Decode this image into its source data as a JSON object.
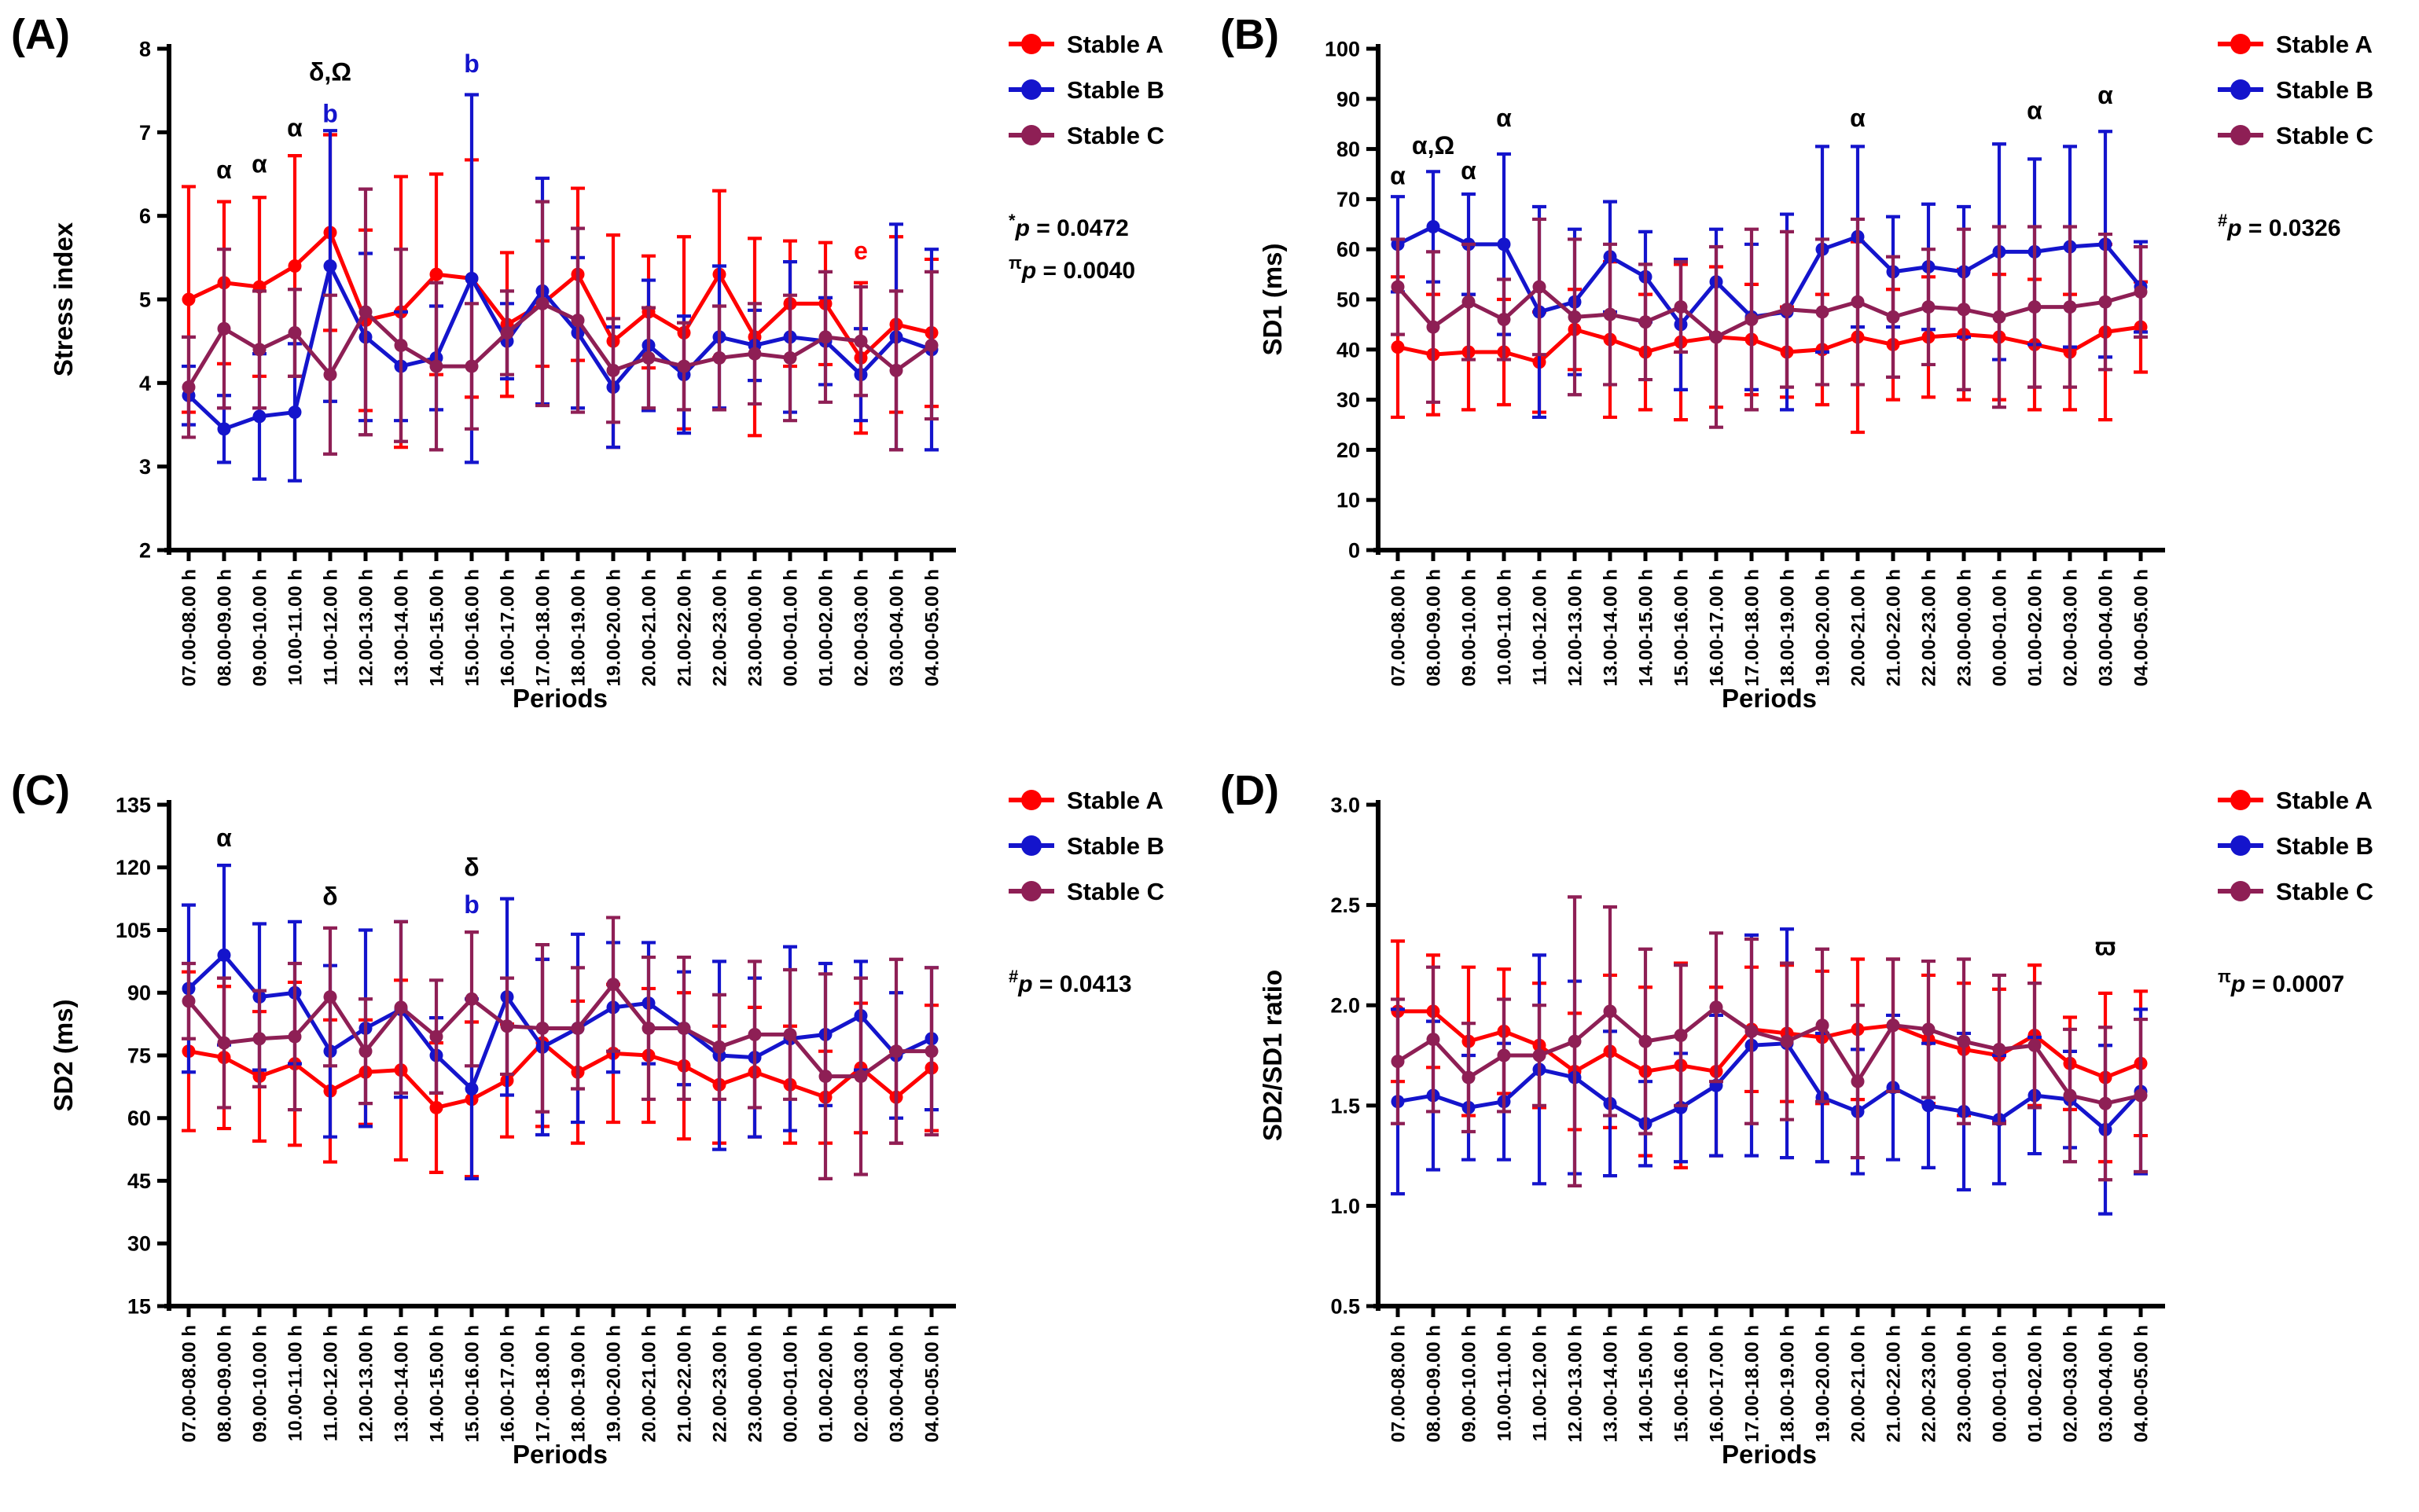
{
  "figure": {
    "background": "#ffffff",
    "xlabel": "Periods",
    "legend_labels": [
      "Stable A",
      "Stable B",
      "Stable C"
    ],
    "colors": {
      "stable_a": "#FF0000",
      "stable_b": "#1414CC",
      "stable_c": "#8E1F55",
      "axis": "#000000"
    },
    "periods": [
      "07.00-08.00 h",
      "08.00-09.00 h",
      "09.00-10.00 h",
      "10.00-11.00 h",
      "11.00-12.00 h",
      "12.00-13.00 h",
      "13.00-14.00 h",
      "14.00-15.00 h",
      "15.00-16.00 h",
      "16.00-17.00 h",
      "17.00-18.00 h",
      "18.00-19.00 h",
      "19.00-20.00 h",
      "20.00-21.00 h",
      "21.00-22.00 h",
      "22.00-23.00 h",
      "23.00-00.00 h",
      "00.00-01.00 h",
      "01.00-02.00 h",
      "02.00-03.00 h",
      "03.00-04.00 h",
      "04.00-05.00 h"
    ]
  },
  "chart_data": [
    {
      "type": "line",
      "letter": "(A)",
      "ylabel": "Stress index",
      "xlabel": "Periods",
      "ylim": [
        2,
        8
      ],
      "ytick_step": 1,
      "ytick_decimals": 0,
      "grid": false,
      "legend_position": "right",
      "series": [
        {
          "name": "Stable A",
          "color": "#FF0000",
          "values": [
            5.0,
            5.2,
            5.15,
            5.4,
            5.8,
            4.75,
            4.85,
            5.3,
            5.25,
            4.7,
            4.95,
            5.3,
            4.5,
            4.85,
            4.6,
            5.3,
            4.55,
            4.95,
            4.95,
            4.3,
            4.7,
            4.6
          ],
          "sd": [
            1.35,
            0.97,
            1.07,
            1.32,
            1.17,
            1.08,
            1.62,
            1.2,
            1.42,
            0.86,
            0.75,
            1.03,
            1.27,
            0.67,
            1.15,
            1.0,
            1.18,
            0.75,
            0.73,
            0.9,
            1.05,
            0.88
          ]
        },
        {
          "name": "Stable B",
          "color": "#1414CC",
          "values": [
            3.85,
            3.45,
            3.6,
            3.65,
            5.4,
            4.55,
            4.2,
            4.3,
            5.25,
            4.5,
            5.1,
            4.6,
            3.95,
            4.45,
            4.1,
            4.55,
            4.45,
            4.55,
            4.5,
            4.1,
            4.55,
            4.4
          ],
          "sd": [
            0.35,
            0.4,
            0.75,
            0.82,
            1.62,
            1.0,
            0.65,
            0.62,
            2.2,
            0.45,
            1.35,
            0.9,
            0.72,
            0.78,
            0.7,
            0.85,
            0.42,
            0.9,
            0.52,
            0.55,
            1.35,
            1.2
          ]
        },
        {
          "name": "Stable C",
          "color": "#8E1F55",
          "values": [
            3.95,
            4.65,
            4.4,
            4.6,
            4.1,
            4.85,
            4.45,
            4.2,
            4.2,
            4.6,
            4.95,
            4.75,
            4.15,
            4.3,
            4.2,
            4.3,
            4.35,
            4.3,
            4.55,
            4.5,
            4.15,
            4.45
          ],
          "sd": [
            0.6,
            0.95,
            0.7,
            0.52,
            0.95,
            1.47,
            1.15,
            1.0,
            0.75,
            0.5,
            1.22,
            1.1,
            0.62,
            0.6,
            0.52,
            0.62,
            0.6,
            0.75,
            0.78,
            0.65,
            0.95,
            0.88
          ]
        }
      ],
      "annotations": [
        {
          "x": 2,
          "y": 6.45,
          "text": "α",
          "color": "#000000"
        },
        {
          "x": 3,
          "y": 6.52,
          "text": "α",
          "color": "#000000"
        },
        {
          "x": 4,
          "y": 6.95,
          "text": "α",
          "color": "#000000"
        },
        {
          "x": 5,
          "y": 7.62,
          "text": "δ,Ω",
          "color": "#000000"
        },
        {
          "x": 5,
          "y": 7.12,
          "text": "b",
          "color": "#1414CC"
        },
        {
          "x": 9,
          "y": 7.72,
          "text": "b",
          "color": "#1414CC"
        },
        {
          "x": 20,
          "y": 5.48,
          "text": "e",
          "color": "#FF0000"
        }
      ],
      "pvalues": [
        {
          "sup": "*",
          "text": "p = 0.0472"
        },
        {
          "sup": "π",
          "text": "p = 0.0040"
        }
      ]
    },
    {
      "type": "line",
      "letter": "(B)",
      "ylabel": "SD1 (ms)",
      "xlabel": "Periods",
      "ylim": [
        0,
        100
      ],
      "ytick_step": 10,
      "ytick_decimals": 0,
      "grid": false,
      "legend_position": "right",
      "series": [
        {
          "name": "Stable A",
          "color": "#FF0000",
          "values": [
            40.5,
            39,
            39.5,
            39.5,
            37.5,
            44,
            42,
            39.5,
            41.5,
            42.5,
            42,
            39.5,
            40,
            42.5,
            41,
            42.5,
            43,
            42.5,
            41,
            39.5,
            43.5,
            44.5
          ],
          "sd": [
            14,
            12,
            11.5,
            10.5,
            10,
            8,
            15.5,
            11.5,
            15.5,
            14,
            11,
            9,
            11,
            19,
            11,
            12,
            13,
            12.5,
            13,
            11.5,
            17.5,
            9
          ]
        },
        {
          "name": "Stable B",
          "color": "#1414CC",
          "values": [
            61,
            64.5,
            61,
            61,
            47.5,
            49.5,
            58.5,
            54.5,
            45,
            53.5,
            46.5,
            47.5,
            60,
            62.5,
            55.5,
            56.5,
            55.5,
            59.5,
            59.5,
            60.5,
            61,
            52.5
          ],
          "sd": [
            9.5,
            11,
            10,
            18,
            21,
            14.5,
            11,
            9,
            13,
            10.5,
            14.5,
            19.5,
            20.5,
            18,
            11,
            12.5,
            13,
            21.5,
            18.5,
            20,
            22.5,
            9
          ]
        },
        {
          "name": "Stable C",
          "color": "#8E1F55",
          "values": [
            52.5,
            44.5,
            49.5,
            46,
            52.5,
            46.5,
            47,
            45.5,
            48.5,
            42.5,
            46,
            48,
            47.5,
            49.5,
            46.5,
            48.5,
            48,
            46.5,
            48.5,
            48.5,
            49.5,
            51.5
          ],
          "sd": [
            9.5,
            15,
            11.5,
            8,
            13.5,
            15.5,
            14,
            11.5,
            9,
            18,
            18,
            15.5,
            14.5,
            16.5,
            12,
            11.5,
            16,
            18,
            16,
            16,
            13.5,
            9
          ]
        }
      ],
      "annotations": [
        {
          "x": 1,
          "y": 73,
          "text": "α",
          "color": "#000000"
        },
        {
          "x": 2,
          "y": 79,
          "text": "α,Ω",
          "color": "#000000"
        },
        {
          "x": 3,
          "y": 74,
          "text": "α",
          "color": "#000000"
        },
        {
          "x": 4,
          "y": 84.5,
          "text": "α",
          "color": "#000000"
        },
        {
          "x": 14,
          "y": 84.5,
          "text": "α",
          "color": "#000000"
        },
        {
          "x": 19,
          "y": 86,
          "text": "α",
          "color": "#000000"
        },
        {
          "x": 21,
          "y": 89,
          "text": "α",
          "color": "#000000"
        }
      ],
      "pvalues": [
        {
          "sup": "#",
          "text": "p = 0.0326"
        }
      ]
    },
    {
      "type": "line",
      "letter": "(C)",
      "ylabel": "SD2 (ms)",
      "xlabel": "Periods",
      "ylim": [
        15,
        135
      ],
      "ytick_step": 15,
      "ytick_decimals": 0,
      "grid": false,
      "legend_position": "right",
      "series": [
        {
          "name": "Stable A",
          "color": "#FF0000",
          "values": [
            76,
            74.5,
            70,
            73,
            66.5,
            71,
            71.5,
            62.5,
            64.5,
            69,
            78,
            71,
            75.5,
            75,
            72.5,
            68,
            71,
            68,
            65,
            72,
            65,
            72
          ],
          "sd": [
            19,
            17,
            15.5,
            19.5,
            17,
            12.5,
            21.5,
            15.5,
            18.5,
            13.5,
            20,
            17,
            16.5,
            16,
            17.5,
            14,
            15.5,
            14,
            11,
            15.5,
            11,
            15
          ]
        },
        {
          "name": "Stable B",
          "color": "#1414CC",
          "values": [
            91,
            99,
            89,
            90,
            76,
            81.5,
            86,
            75,
            67,
            89,
            77,
            81.5,
            86.5,
            87.5,
            81.5,
            75,
            74.5,
            79,
            80,
            84.5,
            75,
            79
          ],
          "sd": [
            20,
            21.5,
            17.5,
            17,
            20.5,
            23.5,
            21,
            9,
            21.5,
            23.5,
            21,
            22.5,
            15.5,
            14.5,
            13.5,
            22.5,
            19,
            22,
            17,
            13,
            15,
            17
          ]
        },
        {
          "name": "Stable C",
          "color": "#8E1F55",
          "values": [
            88,
            78,
            79,
            79.5,
            89,
            76,
            86.5,
            79.5,
            88.5,
            82,
            81.5,
            81.5,
            92,
            81.5,
            81.5,
            77,
            80,
            80,
            70,
            70,
            76,
            76
          ],
          "sd": [
            9,
            15.5,
            11.5,
            17.5,
            16.5,
            12.5,
            20.5,
            13.5,
            16,
            11.5,
            20,
            14.5,
            16,
            17,
            17,
            12.5,
            17.5,
            15.5,
            24.5,
            23.5,
            22,
            20
          ]
        }
      ],
      "annotations": [
        {
          "x": 2,
          "y": 125,
          "text": "α",
          "color": "#000000"
        },
        {
          "x": 5,
          "y": 111,
          "text": "δ",
          "color": "#000000"
        },
        {
          "x": 9,
          "y": 118,
          "text": "δ",
          "color": "#000000"
        },
        {
          "x": 9,
          "y": 109,
          "text": "b",
          "color": "#1414CC"
        }
      ],
      "pvalues": [
        {
          "sup": "#",
          "text": "p = 0.0413"
        }
      ]
    },
    {
      "type": "line",
      "letter": "(D)",
      "ylabel": "SD2/SD1 ratio",
      "xlabel": "Periods",
      "ylim": [
        0.5,
        3.0
      ],
      "ytick_step": 0.5,
      "ytick_decimals": 1,
      "grid": false,
      "legend_position": "right",
      "series": [
        {
          "name": "Stable A",
          "color": "#FF0000",
          "values": [
            1.97,
            1.97,
            1.82,
            1.87,
            1.8,
            1.67,
            1.77,
            1.67,
            1.7,
            1.67,
            1.88,
            1.86,
            1.84,
            1.88,
            1.9,
            1.83,
            1.78,
            1.75,
            1.85,
            1.71,
            1.64,
            1.71
          ],
          "sd": [
            0.35,
            0.28,
            0.37,
            0.31,
            0.31,
            0.29,
            0.38,
            0.42,
            0.51,
            0.42,
            0.31,
            0.34,
            0.33,
            0.35,
            0.33,
            0.32,
            0.33,
            0.33,
            0.35,
            0.23,
            0.42,
            0.36
          ]
        },
        {
          "name": "Stable B",
          "color": "#1414CC",
          "values": [
            1.52,
            1.55,
            1.49,
            1.52,
            1.68,
            1.64,
            1.51,
            1.41,
            1.49,
            1.6,
            1.8,
            1.81,
            1.54,
            1.47,
            1.59,
            1.5,
            1.47,
            1.43,
            1.55,
            1.53,
            1.38,
            1.57
          ],
          "sd": [
            0.46,
            0.37,
            0.26,
            0.29,
            0.57,
            0.48,
            0.36,
            0.21,
            0.27,
            0.35,
            0.55,
            0.57,
            0.32,
            0.31,
            0.36,
            0.31,
            0.39,
            0.32,
            0.29,
            0.24,
            0.42,
            0.41
          ]
        },
        {
          "name": "Stable C",
          "color": "#8E1F55",
          "values": [
            1.72,
            1.83,
            1.64,
            1.75,
            1.75,
            1.82,
            1.97,
            1.82,
            1.85,
            1.99,
            1.87,
            1.82,
            1.9,
            1.62,
            1.9,
            1.88,
            1.82,
            1.78,
            1.8,
            1.55,
            1.51,
            1.55
          ],
          "sd": [
            0.31,
            0.36,
            0.27,
            0.28,
            0.25,
            0.72,
            0.52,
            0.46,
            0.35,
            0.37,
            0.46,
            0.39,
            0.38,
            0.38,
            0.33,
            0.34,
            0.41,
            0.37,
            0.31,
            0.33,
            0.38,
            0.38
          ]
        }
      ],
      "annotations": [
        {
          "x": 21,
          "y": 2.25,
          "text": "ϖ",
          "color": "#000000"
        }
      ],
      "pvalues": [
        {
          "sup": "π",
          "text": "p = 0.0007"
        }
      ]
    }
  ]
}
